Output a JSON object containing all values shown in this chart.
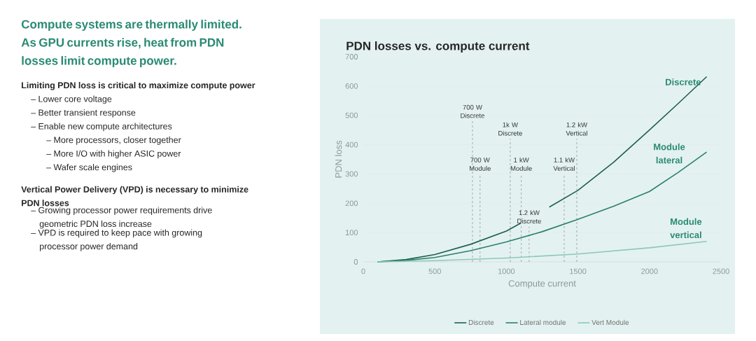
{
  "chart_data": {
    "type": "line",
    "title": "PDN losses vs. compute current",
    "xlabel": "Compute current",
    "ylabel": "PDN loss",
    "xlim": [
      0,
      2500
    ],
    "ylim": [
      0,
      700
    ],
    "xticks": [
      0,
      500,
      1000,
      1500,
      2000,
      2500
    ],
    "yticks": [
      0,
      100,
      200,
      300,
      400,
      500,
      600,
      700
    ],
    "grid": "y",
    "legend": "bottom",
    "line_style": "solid",
    "series": [
      {
        "name": "Discrete",
        "color": "#1f5f50",
        "x": [
          100,
          300,
          500,
          750,
          1000,
          1100,
          1200,
          1300,
          1500,
          1750,
          2000,
          2200,
          2400
        ],
        "values": [
          0,
          8,
          25,
          60,
          105,
          132,
          null,
          187,
          244,
          340,
          450,
          540,
          632
        ]
      },
      {
        "name": "Lateral module",
        "color": "#2b7f6c",
        "x": [
          100,
          300,
          500,
          750,
          1000,
          1250,
          1500,
          1750,
          2000,
          2200,
          2400
        ],
        "values": [
          0,
          5,
          15,
          38,
          68,
          103,
          145,
          190,
          240,
          305,
          375
        ]
      },
      {
        "name": "Vert Module",
        "color": "#8ec8b6",
        "x": [
          100,
          500,
          1000,
          1500,
          2000,
          2400
        ],
        "values": [
          0,
          4,
          13,
          27,
          48,
          70
        ]
      }
    ],
    "ref_lines": [
      {
        "axis": "x",
        "value": 763,
        "label": "700 W Discrete",
        "line_style": "dashed"
      },
      {
        "axis": "x",
        "value": 816,
        "label": "700 W Module",
        "line_style": "dashed"
      },
      {
        "axis": "x",
        "value": 1027,
        "label": "1k W Discrete",
        "line_style": "dashed"
      },
      {
        "axis": "x",
        "value": 1104,
        "label": "1 kW Module",
        "line_style": "dashed"
      },
      {
        "axis": "x",
        "value": 1159,
        "label": "1.2 kW Discrete",
        "line_style": "dashed"
      },
      {
        "axis": "x",
        "value": 1404,
        "label": "1.1 kW Vertical",
        "line_style": "dashed"
      },
      {
        "axis": "x",
        "value": 1492,
        "label": "1.2 kW Vertical",
        "line_style": "dashed"
      }
    ],
    "annotations": [
      "Compute systems are thermally limited. As GPU currents rise, heat from PDN losses limit compute power.",
      "Limiting PDN loss is critical to maximize compute power",
      "– Lower core voltage",
      "– Better transient response",
      "– Enable new compute architectures",
      "– More processors, closer together",
      "– More I/O with higher ASIC power",
      "– Wafer scale engines",
      "Vertical Power Delivery (VPD) is necessary to minimize PDN losses",
      "– Growing processor power requirements drive geometric PDN loss increase",
      "– VPD is required to keep pace with growing processor power demand",
      "Discrete",
      "Module lateral",
      "Module vertical"
    ]
  }
}
